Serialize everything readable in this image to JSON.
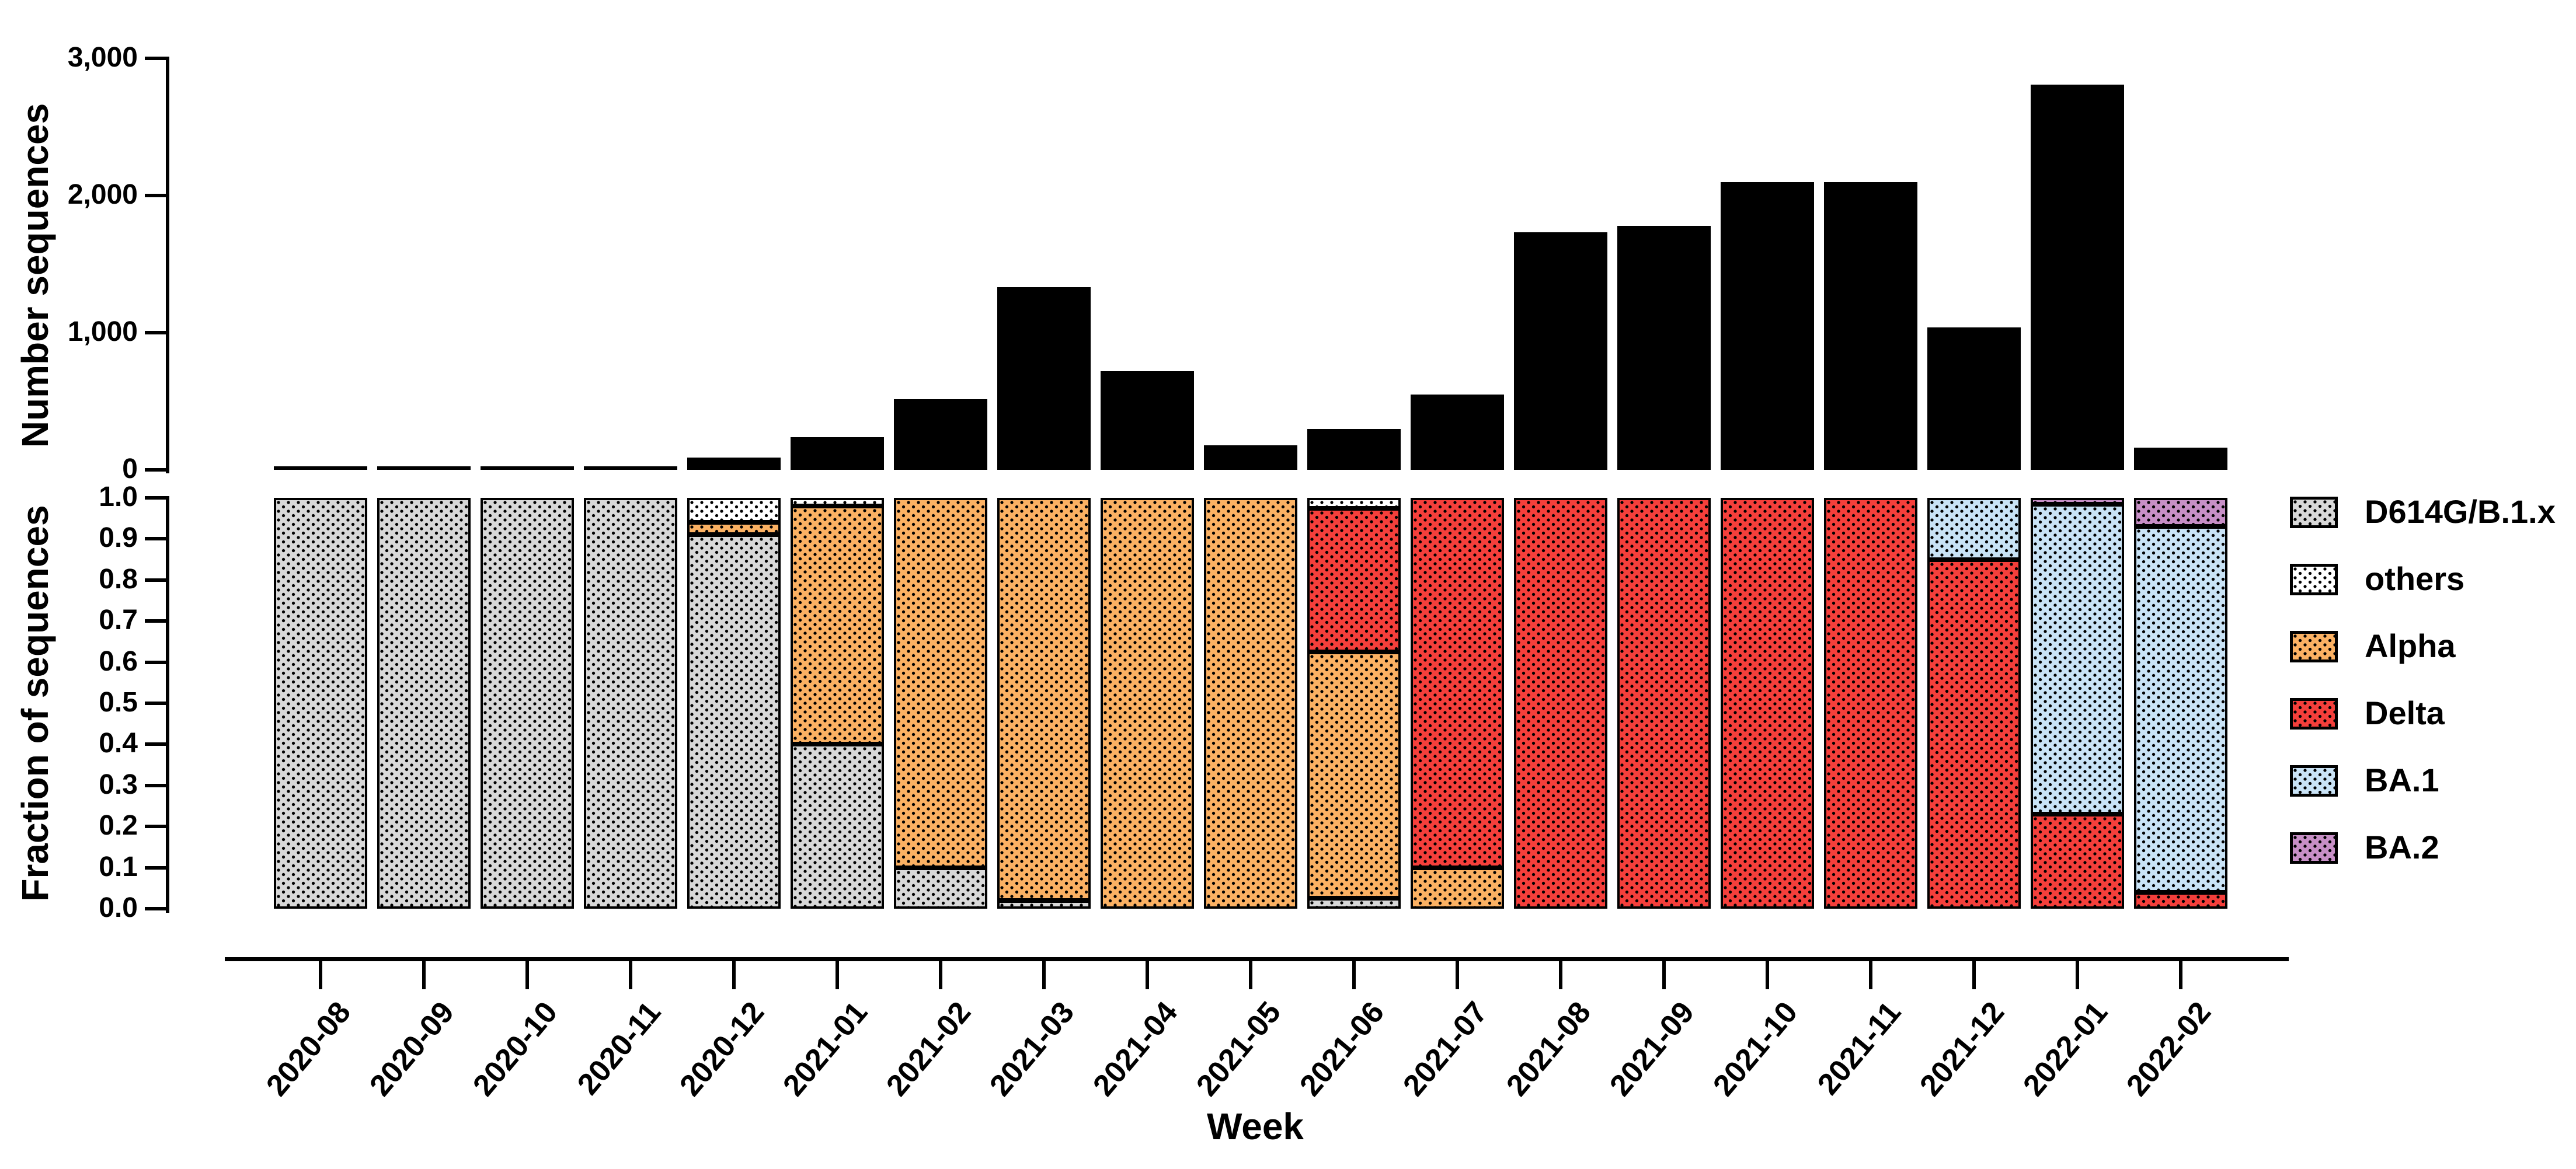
{
  "chart_data": [
    {
      "type": "bar",
      "panel": "top",
      "title": "",
      "ylabel": "Number sequences",
      "xlabel": "",
      "categories": [
        "2020-08",
        "2020-09",
        "2020-10",
        "2020-11",
        "2020-12",
        "2021-01",
        "2021-02",
        "2021-03",
        "2021-04",
        "2021-05",
        "2021-06",
        "2021-07",
        "2021-08",
        "2021-09",
        "2021-10",
        "2021-11",
        "2021-12",
        "2022-01",
        "2022-02"
      ],
      "values": [
        8,
        8,
        8,
        12,
        90,
        240,
        515,
        1330,
        720,
        180,
        300,
        550,
        1730,
        1780,
        2100,
        2100,
        1040,
        2810,
        160
      ],
      "ylim": [
        0,
        3000
      ],
      "yticks": [
        0,
        1000,
        2000,
        3000
      ],
      "ytick_labels": [
        "0",
        "1,000",
        "2,000",
        "3,000"
      ],
      "bar_color": "#000000",
      "grid": "off"
    },
    {
      "type": "bar",
      "panel": "bottom",
      "stacked": true,
      "title": "",
      "ylabel": "Fraction of sequences",
      "xlabel": "Week",
      "categories": [
        "2020-08",
        "2020-09",
        "2020-10",
        "2020-11",
        "2020-12",
        "2021-01",
        "2021-02",
        "2021-03",
        "2021-04",
        "2021-05",
        "2021-06",
        "2021-07",
        "2021-08",
        "2021-09",
        "2021-10",
        "2021-11",
        "2021-12",
        "2022-01",
        "2022-02"
      ],
      "ylim": [
        0,
        1
      ],
      "yticks": [
        0,
        0.1,
        0.2,
        0.3,
        0.4,
        0.5,
        0.6,
        0.7,
        0.8,
        0.9,
        1.0
      ],
      "ytick_labels": [
        "0.0",
        "0.1",
        "0.2",
        "0.3",
        "0.4",
        "0.5",
        "0.6",
        "0.7",
        "0.8",
        "0.9",
        "1.0"
      ],
      "stack_order": [
        "D614G/B.1.x",
        "Alpha",
        "Delta",
        "BA.1",
        "BA.2",
        "others"
      ],
      "series": [
        {
          "name": "D614G/B.1.x",
          "color": "#D8D8D8",
          "values": [
            1,
            1,
            1,
            1,
            0.91,
            0.4,
            0.1,
            0.02,
            0,
            0,
            0.025,
            0,
            0,
            0,
            0,
            0,
            0,
            0,
            0
          ]
        },
        {
          "name": "others",
          "color": "#FFFFFF",
          "values": [
            0,
            0,
            0,
            0,
            0.06,
            0.02,
            0,
            0,
            0,
            0,
            0.025,
            0,
            0,
            0,
            0,
            0,
            0,
            0,
            0
          ]
        },
        {
          "name": "Alpha",
          "color": "#FBB163",
          "values": [
            0,
            0,
            0,
            0,
            0.03,
            0.58,
            0.9,
            0.98,
            1,
            1,
            0.6,
            0.1,
            0,
            0,
            0,
            0,
            0,
            0,
            0
          ]
        },
        {
          "name": "Delta",
          "color": "#F53F3B",
          "values": [
            0,
            0,
            0,
            0,
            0,
            0,
            0,
            0,
            0,
            0,
            0.35,
            0.9,
            1,
            1,
            1,
            1,
            0.85,
            0.23,
            0.04
          ]
        },
        {
          "name": "BA.1",
          "color": "#C9E3F6",
          "values": [
            0,
            0,
            0,
            0,
            0,
            0,
            0,
            0,
            0,
            0,
            0,
            0,
            0,
            0,
            0,
            0,
            0.15,
            0.755,
            0.89
          ]
        },
        {
          "name": "BA.2",
          "color": "#C78FC6",
          "values": [
            0,
            0,
            0,
            0,
            0,
            0,
            0,
            0,
            0,
            0,
            0,
            0,
            0,
            0,
            0,
            0,
            0,
            0.015,
            0.07
          ]
        }
      ],
      "legend": {
        "position": "right",
        "entries": [
          {
            "label": "D614G/B.1.x",
            "color": "#D8D8D8"
          },
          {
            "label": "others",
            "color": "#FFFFFF"
          },
          {
            "label": "Alpha",
            "color": "#FBB163"
          },
          {
            "label": "Delta",
            "color": "#F53F3B"
          },
          {
            "label": "BA.1",
            "color": "#C9E3F6"
          },
          {
            "label": "BA.2",
            "color": "#C78FC6"
          }
        ]
      },
      "grid": "off"
    }
  ]
}
